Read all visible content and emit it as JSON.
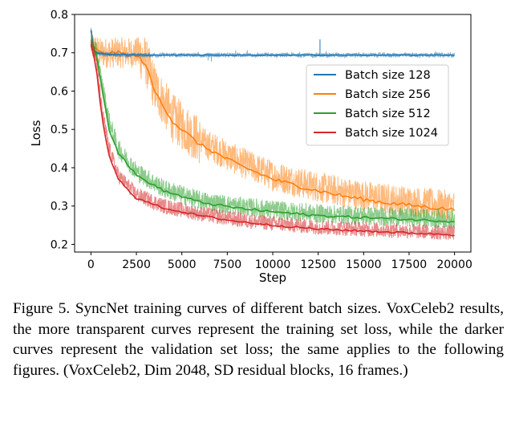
{
  "chart_data": {
    "type": "line",
    "title": "",
    "xlabel": "Step",
    "ylabel": "Loss",
    "xlim": [
      -900,
      20900
    ],
    "ylim": [
      0.18,
      0.8
    ],
    "xticks": [
      0,
      2500,
      5000,
      7500,
      10000,
      12500,
      15000,
      17500,
      20000
    ],
    "yticks": [
      0.2,
      0.3,
      0.4,
      0.5,
      0.6,
      0.7,
      0.8
    ],
    "x_tick_labels": [
      "0",
      "2500",
      "5000",
      "7500",
      "10000",
      "12500",
      "15000",
      "17500",
      "20000"
    ],
    "y_tick_labels": [
      "0.2",
      "0.3",
      "0.4",
      "0.5",
      "0.6",
      "0.7",
      "0.8"
    ],
    "grid": false,
    "legend": "upper-right",
    "note": "training curves are noisy (semi-transparent); validation curves are darker",
    "series": [
      {
        "name": "Batch size 128",
        "color": "#1f77b4",
        "noise": 0.006,
        "x": [
          0,
          100,
          300,
          1000,
          3000,
          6000,
          9000,
          12000,
          12600,
          15000,
          18000,
          20000
        ],
        "train": [
          0.77,
          0.71,
          0.7,
          0.695,
          0.694,
          0.694,
          0.694,
          0.694,
          0.694,
          0.694,
          0.694,
          0.694
        ],
        "val": [
          0.76,
          0.71,
          0.7,
          0.695,
          0.694,
          0.694,
          0.694,
          0.694,
          0.694,
          0.694,
          0.694,
          0.694
        ]
      },
      {
        "name": "Batch size 256",
        "color": "#ff7f0e",
        "noise": 0.04,
        "x": [
          0,
          500,
          1500,
          2600,
          3000,
          3500,
          4500,
          6000,
          8000,
          10000,
          12000,
          14000,
          16000,
          18000,
          20000
        ],
        "train": [
          0.72,
          0.7,
          0.7,
          0.7,
          0.68,
          0.61,
          0.53,
          0.47,
          0.42,
          0.38,
          0.355,
          0.335,
          0.32,
          0.31,
          0.3
        ],
        "val": [
          0.72,
          0.7,
          0.7,
          0.69,
          0.67,
          0.6,
          0.52,
          0.46,
          0.41,
          0.37,
          0.345,
          0.325,
          0.31,
          0.3,
          0.29
        ]
      },
      {
        "name": "Batch size 512",
        "color": "#2ca02c",
        "noise": 0.025,
        "x": [
          0,
          300,
          600,
          1000,
          1500,
          2500,
          4000,
          6000,
          8000,
          10000,
          12500,
          15000,
          17500,
          20000
        ],
        "train": [
          0.73,
          0.7,
          0.62,
          0.52,
          0.45,
          0.39,
          0.345,
          0.315,
          0.3,
          0.29,
          0.28,
          0.275,
          0.27,
          0.265
        ],
        "val": [
          0.73,
          0.7,
          0.61,
          0.5,
          0.44,
          0.38,
          0.34,
          0.31,
          0.295,
          0.285,
          0.275,
          0.27,
          0.265,
          0.26
        ]
      },
      {
        "name": "Batch size 1024",
        "color": "#d62728",
        "noise": 0.02,
        "x": [
          0,
          300,
          600,
          1000,
          1500,
          2500,
          4000,
          6000,
          8000,
          10000,
          12500,
          15000,
          17500,
          20000
        ],
        "train": [
          0.73,
          0.68,
          0.55,
          0.45,
          0.38,
          0.33,
          0.3,
          0.28,
          0.265,
          0.255,
          0.245,
          0.24,
          0.235,
          0.23
        ],
        "val": [
          0.72,
          0.66,
          0.53,
          0.43,
          0.37,
          0.32,
          0.295,
          0.275,
          0.26,
          0.25,
          0.24,
          0.235,
          0.23,
          0.225
        ]
      }
    ]
  },
  "caption": "Figure 5.  SyncNet training curves of different batch sizes.  VoxCeleb2 results, the more transparent curves represent the training set loss, while the darker curves represent the validation set loss; the same applies to the following figures.  (VoxCeleb2, Dim 2048, SD residual blocks, 16 frames.)"
}
